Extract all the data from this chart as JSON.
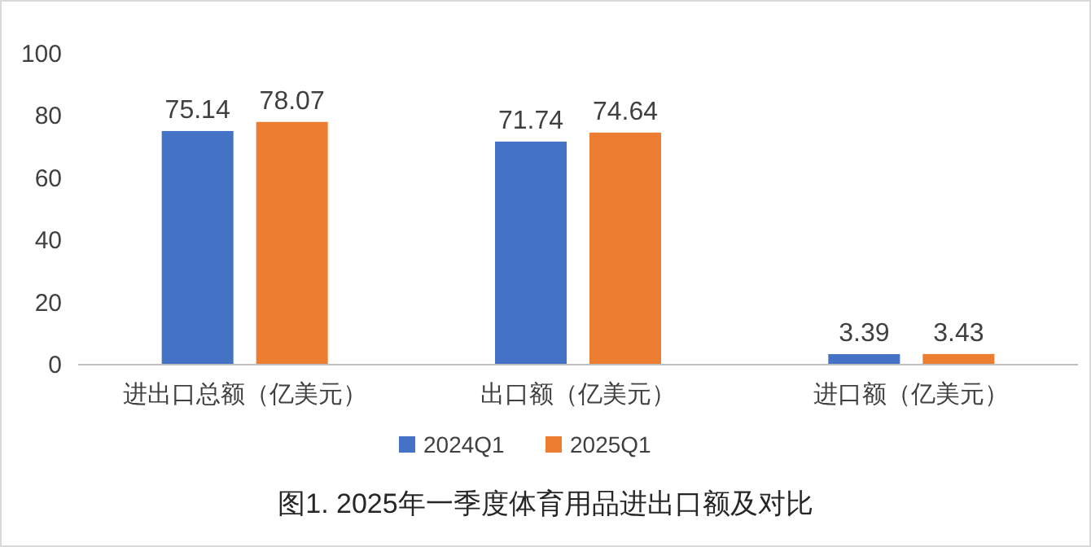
{
  "chart_data": {
    "type": "bar",
    "title": "图1. 2025年一季度体育用品进出口额及对比",
    "categories": [
      "进出口总额（亿美元）",
      "出口额（亿美元）",
      "进口额（亿美元）"
    ],
    "series": [
      {
        "name": "2024Q1",
        "color": "#4472c4",
        "values": [
          75.14,
          71.74,
          3.39
        ]
      },
      {
        "name": "2025Q1",
        "color": "#ed7d31",
        "values": [
          78.07,
          74.64,
          3.43
        ]
      }
    ],
    "ylim": [
      0,
      100
    ],
    "yticks": [
      0,
      20,
      40,
      60,
      80,
      100
    ],
    "data_labels": true,
    "legend": "bottom",
    "grid": false
  }
}
